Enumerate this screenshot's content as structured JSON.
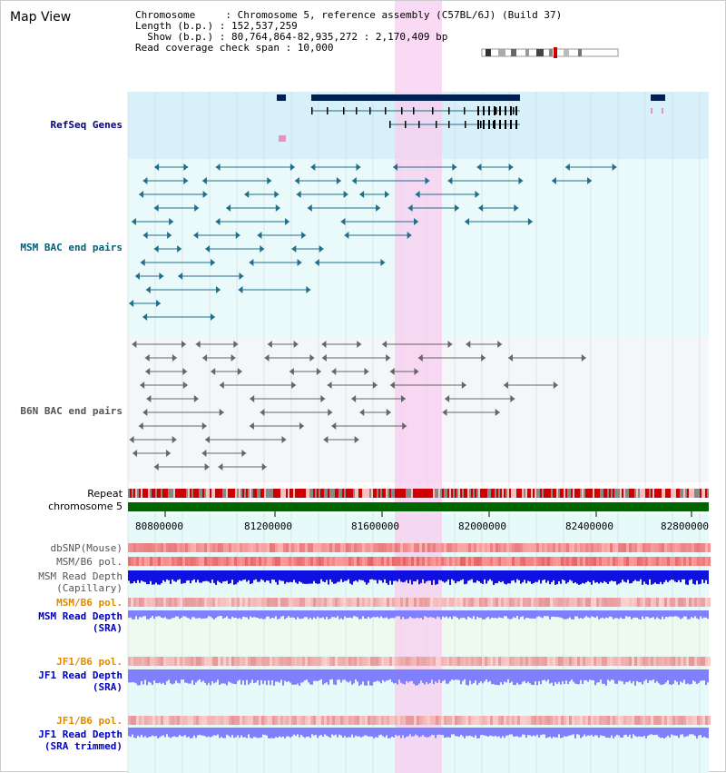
{
  "title": "Map View",
  "info": {
    "line1": "Chromosome     : Chromosome 5, reference assembly (C57BL/6J) (Build 37)",
    "line2": "Length (b.p.) : 152,537,259",
    "line3": "  Show (b.p.) : 80,764,864-82,935,272 : 2,170,409 bp",
    "line4": "Read coverage check span : 10,000"
  },
  "tracks": {
    "refseq": "RefSeq Genes",
    "msm_bac": "MSM BAC end pairs",
    "b6n_bac": "B6N BAC end pairs",
    "repeat": "Repeat",
    "chromosome": "chromosome 5",
    "dbsnp": "dbSNP(Mouse)",
    "msm_b6_pol": "MSM/B6 pol.",
    "msm_read_depth_cap_1": "MSM Read Depth",
    "msm_read_depth_cap_2": "(Capillary)",
    "msm_b6_pol_2": "MSM/B6 pol.",
    "msm_read_depth_sra_1": "MSM Read Depth",
    "msm_read_depth_sra_2": "(SRA)",
    "jf1_b6_pol": "JF1/B6 pol.",
    "jf1_read_depth_sra_1": "JF1 Read Depth",
    "jf1_read_depth_sra_2": "(SRA)",
    "jf1_b6_pol_2": "JF1/B6 pol.",
    "jf1_read_depth_trim_1": "JF1 Read Depth",
    "jf1_read_depth_trim_2": "(SRA trimmed)"
  },
  "axis": {
    "ticks": [
      "80800000",
      "81200000",
      "81600000",
      "82000000",
      "82400000",
      "82800000"
    ]
  },
  "colors": {
    "refseq_bg": "#d8f0fa",
    "bac_bg": "#e8fafa",
    "highlight": "#f8d4f0",
    "gene": "#002050",
    "msm_feature": "#1f6f8b",
    "b6n_feature": "#666666",
    "chromosome": "#006400",
    "depth_cap": "#1010e0",
    "depth_sra": "#8080ff"
  }
}
